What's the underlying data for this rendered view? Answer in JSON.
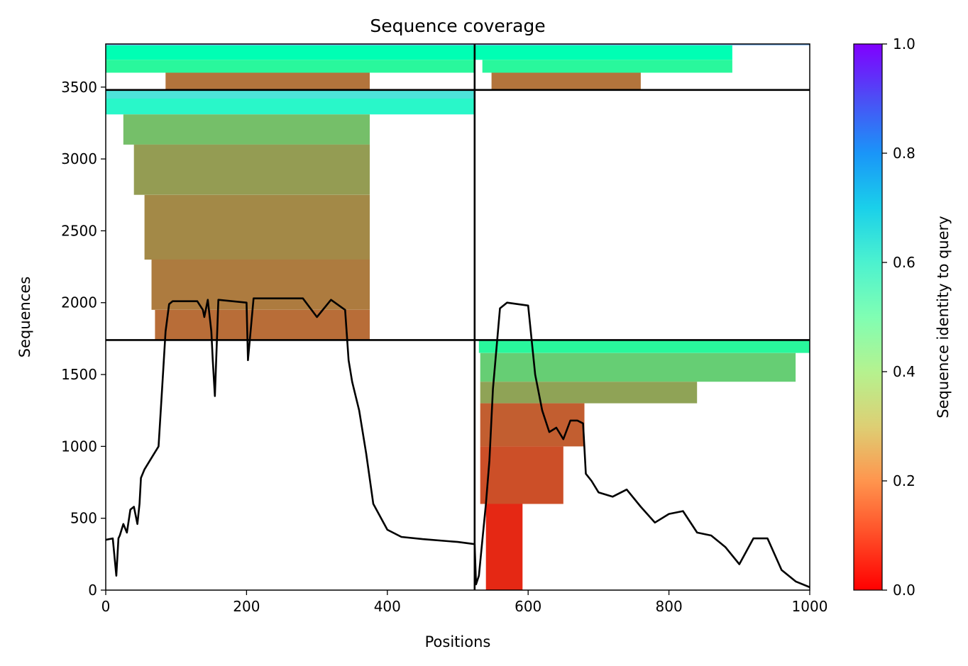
{
  "chart_data": {
    "type": "heatmap",
    "title": "Sequence coverage",
    "xlabel": "Positions",
    "ylabel": "Sequences",
    "xlim": [
      0,
      1000
    ],
    "ylim": [
      0,
      3800
    ],
    "x_ticks": [
      "0",
      "200",
      "400",
      "600",
      "800",
      "1000"
    ],
    "x_tick_values": [
      0,
      200,
      400,
      600,
      800,
      1000
    ],
    "y_ticks": [
      "0",
      "500",
      "1000",
      "1500",
      "2000",
      "2500",
      "3000",
      "3500"
    ],
    "y_tick_values": [
      0,
      500,
      1000,
      1500,
      2000,
      2500,
      3000,
      3500
    ],
    "colorbar": {
      "label": "Sequence identity to query",
      "range": [
        0,
        1
      ],
      "ticks": [
        "0.0",
        "0.2",
        "0.4",
        "0.6",
        "0.8",
        "1.0"
      ],
      "tick_values": [
        0,
        0.2,
        0.4,
        0.6,
        0.8,
        1.0
      ],
      "colormap": "rainbow_r"
    },
    "dividers": {
      "vertical_x": 524,
      "horizontal_y": [
        1740,
        3480
      ]
    },
    "blocks": [
      {
        "name": "top-left",
        "x_range": [
          0,
          524
        ],
        "y_range": [
          3480,
          3800
        ],
        "rows": [
          {
            "y0": 3790,
            "y1": 3800,
            "x0": 0,
            "x1": 524,
            "identity": 0.75
          },
          {
            "y0": 3690,
            "y1": 3790,
            "x0": 0,
            "x1": 524,
            "identity": 0.5
          },
          {
            "y0": 3600,
            "y1": 3690,
            "x0": 0,
            "x1": 524,
            "identity": 0.42
          },
          {
            "y0": 3480,
            "y1": 3600,
            "x0": 85,
            "x1": 375,
            "identity": 0.15
          }
        ]
      },
      {
        "name": "middle-left",
        "x_range": [
          0,
          524
        ],
        "y_range": [
          1740,
          3480
        ],
        "rows": [
          {
            "y0": 3420,
            "y1": 3480,
            "x0": 0,
            "x1": 524,
            "identity": 0.65
          },
          {
            "y0": 3310,
            "y1": 3420,
            "x0": 0,
            "x1": 524,
            "identity": 0.58
          },
          {
            "y0": 3100,
            "y1": 3310,
            "x0": 25,
            "x1": 375,
            "identity": 0.27
          },
          {
            "y0": 2750,
            "y1": 3100,
            "x0": 40,
            "x1": 375,
            "identity": 0.21
          },
          {
            "y0": 2300,
            "y1": 2750,
            "x0": 55,
            "x1": 375,
            "identity": 0.18
          },
          {
            "y0": 1950,
            "y1": 2300,
            "x0": 65,
            "x1": 375,
            "identity": 0.16
          },
          {
            "y0": 1740,
            "y1": 1950,
            "x0": 70,
            "x1": 375,
            "identity": 0.14
          }
        ]
      },
      {
        "name": "top-right",
        "x_range": [
          524,
          1000
        ],
        "y_range": [
          3480,
          3800
        ],
        "rows": [
          {
            "y0": 3790,
            "y1": 3800,
            "x0": 524,
            "x1": 1000,
            "identity": 0.75
          },
          {
            "y0": 3690,
            "y1": 3790,
            "x0": 524,
            "x1": 890,
            "identity": 0.5
          },
          {
            "y0": 3600,
            "y1": 3690,
            "x0": 535,
            "x1": 890,
            "identity": 0.42
          },
          {
            "y0": 3480,
            "y1": 3600,
            "x0": 548,
            "x1": 760,
            "identity": 0.15
          }
        ]
      },
      {
        "name": "bottom-right",
        "x_range": [
          524,
          1000
        ],
        "y_range": [
          0,
          1740
        ],
        "rows": [
          {
            "y0": 1650,
            "y1": 1740,
            "x0": 530,
            "x1": 1000,
            "identity": 0.42
          },
          {
            "y0": 1450,
            "y1": 1650,
            "x0": 532,
            "x1": 980,
            "identity": 0.3
          },
          {
            "y0": 1300,
            "y1": 1450,
            "x0": 532,
            "x1": 840,
            "identity": 0.22
          },
          {
            "y0": 1000,
            "y1": 1300,
            "x0": 532,
            "x1": 680,
            "identity": 0.12
          },
          {
            "y0": 600,
            "y1": 1000,
            "x0": 532,
            "x1": 650,
            "identity": 0.1
          },
          {
            "y0": 0,
            "y1": 600,
            "x0": 540,
            "x1": 592,
            "identity": 0.05
          }
        ]
      }
    ],
    "series": [
      {
        "x": [
          0,
          10,
          15,
          18,
          20,
          25,
          30,
          35,
          40,
          45,
          48,
          50,
          55,
          65,
          75,
          80,
          85,
          90,
          95,
          130,
          138,
          140,
          145,
          150,
          152,
          155,
          160,
          200,
          202,
          210,
          280,
          300,
          320,
          340,
          345,
          350,
          360,
          370,
          380,
          400,
          420,
          450,
          500,
          524,
          526,
          530,
          540,
          545,
          550,
          560,
          570,
          600,
          610,
          620,
          630,
          640,
          650,
          660,
          670,
          678,
          682,
          690,
          700,
          720,
          740,
          760,
          780,
          800,
          820,
          840,
          860,
          880,
          900,
          920,
          940,
          960,
          980,
          1000
        ],
        "y": [
          350,
          360,
          100,
          360,
          380,
          460,
          400,
          560,
          580,
          460,
          600,
          780,
          840,
          920,
          1000,
          1400,
          1800,
          1990,
          2010,
          2010,
          1950,
          1900,
          2020,
          1800,
          1600,
          1350,
          2020,
          2000,
          1600,
          2030,
          2030,
          1900,
          2020,
          1950,
          1600,
          1450,
          1250,
          950,
          600,
          420,
          370,
          355,
          335,
          320,
          40,
          100,
          600,
          900,
          1400,
          1960,
          2000,
          1980,
          1500,
          1250,
          1100,
          1130,
          1050,
          1180,
          1180,
          1160,
          810,
          760,
          680,
          650,
          700,
          580,
          470,
          530,
          550,
          400,
          380,
          300,
          180,
          360,
          360,
          140,
          60,
          20
        ]
      }
    ]
  }
}
